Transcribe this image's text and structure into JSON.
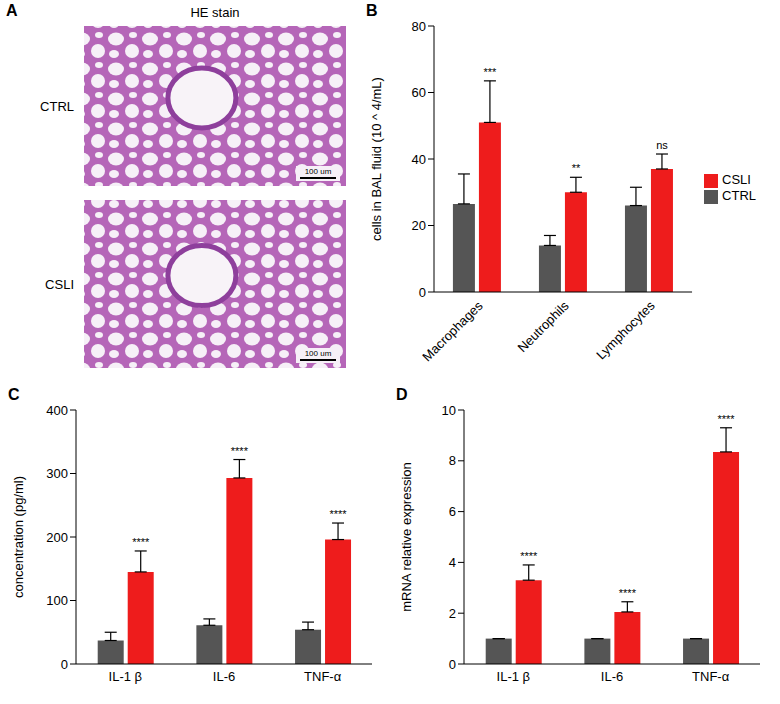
{
  "panel_a": {
    "panel": "A",
    "title": "HE stain",
    "images": [
      {
        "label": "CTRL",
        "scale_bar": "100 um"
      },
      {
        "label": "CSLI",
        "scale_bar": "100 um"
      }
    ]
  },
  "chart_data": [
    {
      "panel": "B",
      "type": "bar",
      "categories": [
        "Macrophages",
        "Neutrophils",
        "Lymphocytes"
      ],
      "y_label": "cells in BAL fluid (10 ^ 4/mL)",
      "ylim": [
        0,
        80
      ],
      "yticks": [
        0,
        20,
        40,
        60,
        80
      ],
      "grid": false,
      "legend": "right",
      "series": [
        {
          "name": "CTRL",
          "color": "#555555",
          "values": [
            26.5,
            14,
            26
          ],
          "errors": [
            9,
            3,
            5.5
          ]
        },
        {
          "name": "CSLI",
          "color": "#ee1c1c",
          "values": [
            51,
            30,
            37
          ],
          "errors": [
            12.5,
            4.5,
            4.5
          ],
          "significance": [
            "***",
            "**",
            "ns"
          ]
        }
      ]
    },
    {
      "panel": "C",
      "type": "bar",
      "categories": [
        "IL-1 β",
        "IL-6",
        "TNF-α"
      ],
      "y_label": "concentration (pg/ml)",
      "ylim": [
        0,
        400
      ],
      "yticks": [
        0,
        100,
        200,
        300,
        400
      ],
      "grid": false,
      "series": [
        {
          "color": "#555555",
          "values": [
            37,
            61,
            54
          ],
          "errors": [
            13,
            10,
            12
          ]
        },
        {
          "color": "#ee1c1c",
          "values": [
            145,
            293,
            196
          ],
          "errors": [
            33,
            29,
            26
          ],
          "significance": [
            "****",
            "****",
            "****"
          ]
        }
      ]
    },
    {
      "panel": "D",
      "type": "bar",
      "categories": [
        "IL-1 β",
        "IL-6",
        "TNF-α"
      ],
      "y_label": "mRNA relative expression",
      "ylim": [
        0,
        10
      ],
      "yticks": [
        0,
        2,
        4,
        6,
        8,
        10
      ],
      "grid": false,
      "series": [
        {
          "color": "#555555",
          "values": [
            1,
            1,
            1
          ],
          "errors": [
            0,
            0,
            0
          ]
        },
        {
          "color": "#ee1c1c",
          "values": [
            3.3,
            2.05,
            8.35
          ],
          "errors": [
            0.6,
            0.4,
            0.95
          ],
          "significance": [
            "****",
            "****",
            "****"
          ]
        }
      ]
    }
  ]
}
